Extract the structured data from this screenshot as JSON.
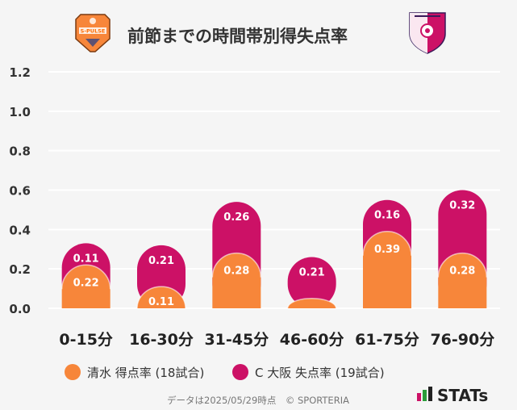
{
  "title": "前節までの時間帯別得失点率",
  "footer": "データは2025/05/29時点　© SPORTERIA",
  "brand": "STATs",
  "colors": {
    "shimizu": "#f7863a",
    "osaka": "#cc1166",
    "background": "#f5f5f5",
    "grid": "#ffffff"
  },
  "logos": {
    "left": "S-PULSE",
    "right": "cerezo-crest"
  },
  "legend": [
    {
      "label": "清水 得点率 (18試合)",
      "color": "#f7863a"
    },
    {
      "label": "C 大阪 失点率 (19試合)",
      "color": "#cc1166"
    }
  ],
  "chart_data": {
    "type": "bar",
    "stacked": true,
    "categories": [
      "0-15分",
      "16-30分",
      "31-45分",
      "46-60分",
      "61-75分",
      "76-90分"
    ],
    "series": [
      {
        "name": "清水 得点率 (18試合)",
        "values": [
          0.22,
          0.11,
          0.28,
          0.05,
          0.39,
          0.28
        ],
        "labels": [
          "0.22",
          "0.11",
          "0.28",
          "",
          "0.39",
          "0.28"
        ]
      },
      {
        "name": "C 大阪 失点率 (19試合)",
        "values": [
          0.11,
          0.21,
          0.26,
          0.21,
          0.16,
          0.32
        ],
        "labels": [
          "0.11",
          "0.21",
          "0.26",
          "0.21",
          "0.16",
          "0.32"
        ]
      }
    ],
    "ylim": [
      0,
      1.2
    ],
    "yticks": [
      "0.0",
      "0.2",
      "0.4",
      "0.6",
      "0.8",
      "1.0",
      "1.2"
    ],
    "grid": true,
    "legend_position": "bottom"
  }
}
